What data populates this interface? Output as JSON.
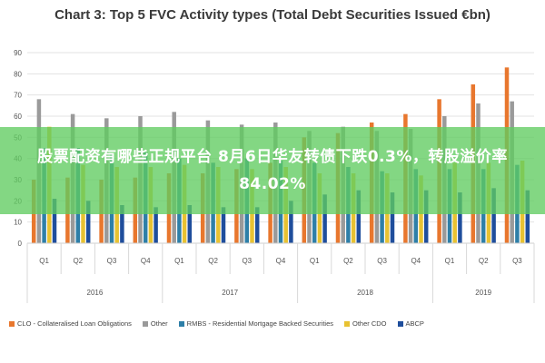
{
  "chart_data": {
    "type": "bar",
    "title": "Chart 3: Top 5 FVC Activity types (Total Debt Securities Issued €bn)",
    "ylim": [
      0,
      90
    ],
    "yticks": [
      "0",
      "10",
      "20",
      "30",
      "40",
      "50",
      "60",
      "70",
      "80",
      "90"
    ],
    "categories": [
      "Q1",
      "Q2",
      "Q3",
      "Q4",
      "Q1",
      "Q2",
      "Q3",
      "Q4",
      "Q1",
      "Q2",
      "Q3",
      "Q4",
      "Q1",
      "Q2",
      "Q3"
    ],
    "year_groups": [
      {
        "label": "2016",
        "count": 4
      },
      {
        "label": "2017",
        "count": 4
      },
      {
        "label": "2018",
        "count": 4
      },
      {
        "label": "2019",
        "count": 3
      }
    ],
    "series": [
      {
        "name": "CLO - Collateralised Loan Obligations",
        "color": "#e8772e",
        "values": [
          30,
          31,
          30,
          31,
          33,
          33,
          35,
          38,
          50,
          52,
          57,
          61,
          68,
          75,
          83
        ]
      },
      {
        "name": "Other",
        "color": "#9a9a9a",
        "values": [
          68,
          61,
          59,
          60,
          62,
          58,
          56,
          57,
          53,
          55,
          53,
          54,
          60,
          66,
          67
        ]
      },
      {
        "name": "RMBS - Residential Mortgage Backed Securities",
        "color": "#2e7fa8",
        "values": [
          45,
          45,
          42,
          43,
          40,
          38,
          40,
          39,
          38,
          36,
          34,
          35,
          35,
          35,
          37
        ]
      },
      {
        "name": "Other CDO",
        "color": "#e8c232",
        "values": [
          55,
          37,
          36,
          36,
          37,
          36,
          35,
          36,
          33,
          33,
          33,
          32,
          38,
          38,
          39
        ]
      },
      {
        "name": "ABCP",
        "color": "#1f4e9c",
        "values": [
          21,
          20,
          18,
          17,
          18,
          17,
          17,
          20,
          23,
          25,
          24,
          25,
          24,
          26,
          25
        ]
      }
    ]
  },
  "banner": {
    "text": "股票配资有哪些正规平台 8月6日华友转债下跌0.3%，转股溢价率84.02%"
  }
}
